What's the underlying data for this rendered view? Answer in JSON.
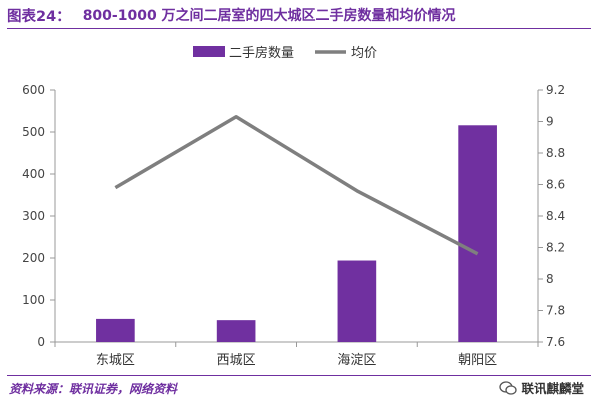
{
  "header": {
    "prefix": "图表24：",
    "title": "800-1000 万之间二居室的四大城区二手房数量和均价情况"
  },
  "chart_data": {
    "type": "bar",
    "categories": [
      "东城区",
      "西城区",
      "海淀区",
      "朝阳区"
    ],
    "series": [
      {
        "name": "二手房数量",
        "type": "bar",
        "axis": "left",
        "values": [
          55,
          52,
          194,
          516
        ],
        "color": "#7030a0"
      },
      {
        "name": "均价",
        "type": "line",
        "axis": "right",
        "values": [
          8.58,
          9.03,
          8.56,
          8.16
        ],
        "color": "#7f7f7f"
      }
    ],
    "y_left": {
      "ylim": [
        0,
        600
      ],
      "ticks": [
        "0",
        "100",
        "200",
        "300",
        "400",
        "500",
        "600"
      ]
    },
    "y_right": {
      "ylim": [
        7.6,
        9.2
      ],
      "ticks": [
        "7.6",
        "7.8",
        "8",
        "8.2",
        "8.4",
        "8.6",
        "8.8",
        "9",
        "9.2"
      ]
    },
    "legend_position": "top-center",
    "grid": false
  },
  "footer": {
    "source": "资料来源：联讯证券，网络资料",
    "watermark": "联讯麒麟堂",
    "watermark_icon": "wechat-icon"
  }
}
